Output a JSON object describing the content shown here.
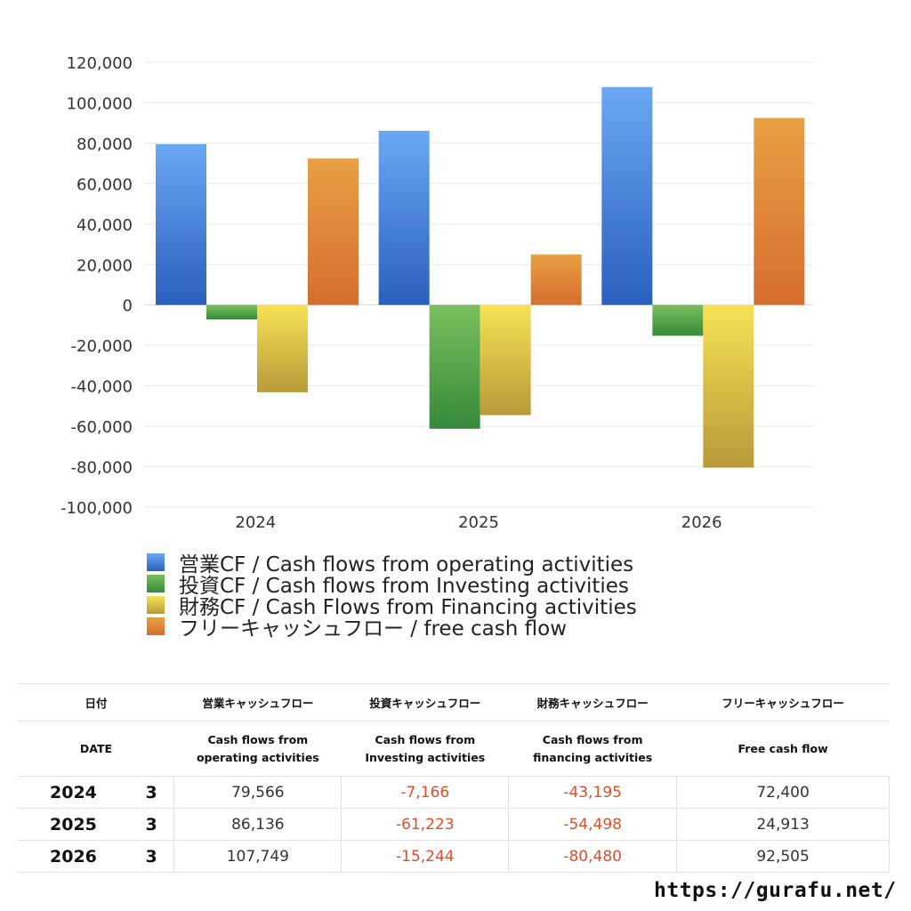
{
  "chart_data": {
    "type": "bar",
    "categories": [
      "2024",
      "2025",
      "2026"
    ],
    "series": [
      {
        "name": "営業CF / Cash flows from operating activities",
        "values": [
          79566,
          86136,
          107749
        ],
        "colors": [
          "#6aa8f2",
          "#2a5fbf"
        ]
      },
      {
        "name": "投資CF / Cash flows from Investing activities",
        "values": [
          -7166,
          -61223,
          -15244
        ],
        "colors": [
          "#7bbf5e",
          "#358a3a"
        ]
      },
      {
        "name": "財務CF / Cash Flows from Financing activities",
        "values": [
          -43195,
          -54498,
          -80480
        ],
        "colors": [
          "#f7e255",
          "#b99a3a"
        ]
      },
      {
        "name": "フリーキャッシュフロー / free cash flow",
        "values": [
          72400,
          24913,
          92505
        ],
        "colors": [
          "#e8a043",
          "#d66d2f"
        ]
      }
    ],
    "ylim": [
      -100000,
      120000
    ],
    "yticks": [
      "120,000",
      "100,000",
      "80,000",
      "60,000",
      "40,000",
      "20,000",
      "0",
      "-20,000",
      "-40,000",
      "-60,000",
      "-80,000",
      "-100,000"
    ],
    "grid": true,
    "legend": "bottom"
  },
  "table": {
    "headers_jp": [
      "日付",
      "営業キャッシュフロー",
      "投資キャッシュフロー",
      "財務キャッシュフロー",
      "フリーキャッシュフロー"
    ],
    "headers_en": [
      "DATE",
      "Cash flows from operating activities",
      "Cash flows from Investing activities",
      "Cash flows from financing activities",
      "Free cash flow"
    ],
    "headers_en_lines": [
      [
        "DATE"
      ],
      [
        "Cash flows from",
        "operating activities"
      ],
      [
        "Cash flows from",
        "Investing activities"
      ],
      [
        "Cash flows from",
        "financing activities"
      ],
      [
        "Free cash flow"
      ]
    ],
    "rows": [
      {
        "year": "2024",
        "month": "3",
        "operating": "79,566",
        "investing": "-7,166",
        "financing": "-43,195",
        "free": "72,400"
      },
      {
        "year": "2025",
        "month": "3",
        "operating": "86,136",
        "investing": "-61,223",
        "financing": "-54,498",
        "free": "24,913"
      },
      {
        "year": "2026",
        "month": "3",
        "operating": "107,749",
        "investing": "-15,244",
        "financing": "-80,480",
        "free": "92,505"
      }
    ]
  },
  "footer": {
    "url": "https://gurafu.net/"
  },
  "colors": {
    "negative": "#d9502e"
  }
}
